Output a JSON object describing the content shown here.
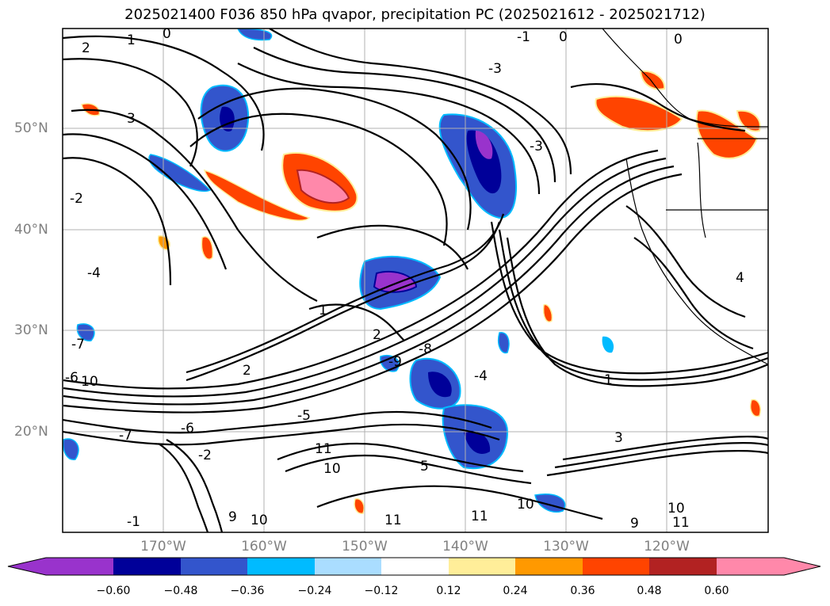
{
  "title": "2025021400 F036 850 hPa qvapor, precipitation PC (2025021612 - 2025021712)",
  "map": {
    "lat_labels": [
      "50°N",
      "40°N",
      "30°N",
      "20°N"
    ],
    "lon_labels": [
      "170°W",
      "160°W",
      "150°W",
      "140°W",
      "130°W",
      "120°W"
    ],
    "contour_labels": [
      "2",
      "1",
      "0",
      "3",
      "0",
      "0",
      "-1",
      "-2",
      "-4",
      "-3",
      "-3",
      "4",
      "1",
      "2",
      "2",
      "1",
      "-6",
      "-7",
      "-10",
      "-9",
      "-8",
      "-4",
      "-5",
      "-6",
      "-7",
      "11",
      "10",
      "11",
      "5",
      "11",
      "10",
      "9",
      "10",
      "11",
      "9",
      "10",
      "3",
      "-1",
      "-2"
    ],
    "grid_lines": true,
    "coastline": true
  },
  "colorbar": {
    "tick_labels": [
      "−0.60",
      "−0.48",
      "−0.36",
      "−0.24",
      "−0.12",
      "0.12",
      "0.24",
      "0.36",
      "0.48",
      "0.60"
    ],
    "colors": [
      "#9933cc",
      "#000099",
      "#3355cc",
      "#00bbff",
      "#aaddff",
      "#ffffff",
      "#ffee99",
      "#ff9900",
      "#ff4400",
      "#b22222",
      "#ff88aa"
    ]
  }
}
